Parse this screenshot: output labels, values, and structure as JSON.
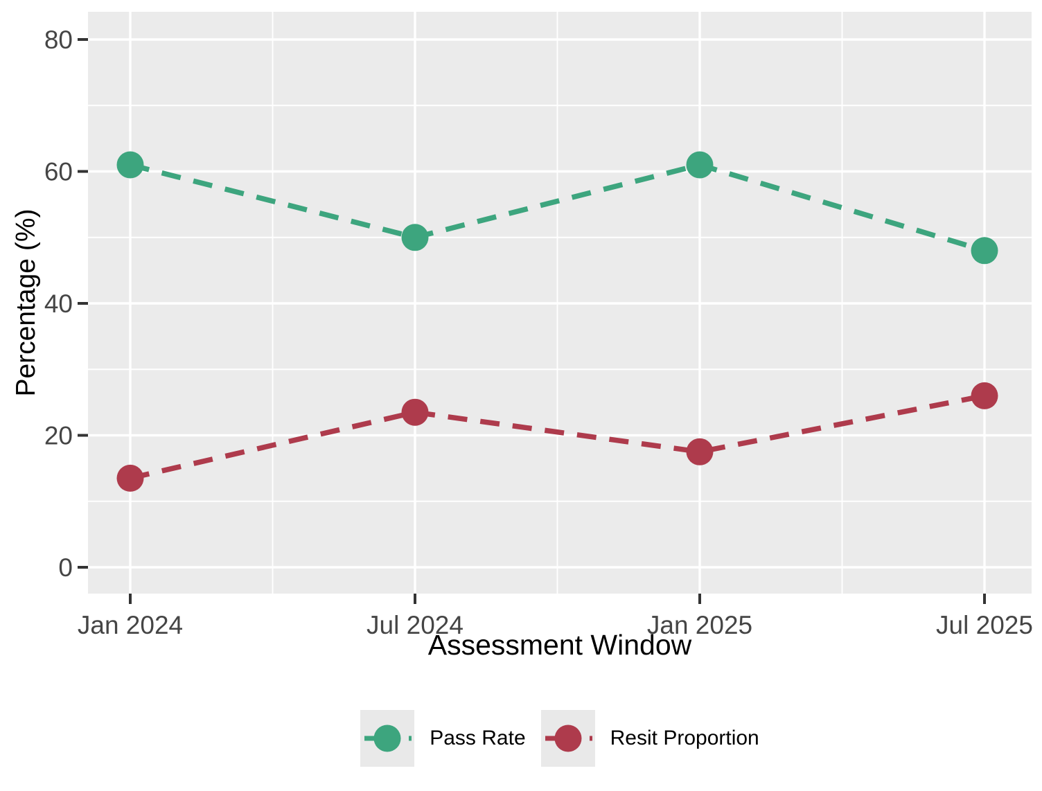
{
  "chart_data": {
    "type": "line",
    "title": "",
    "xlabel": "Assessment Window",
    "ylabel": "Percentage (%)",
    "categories": [
      "Jan 2024",
      "Jul 2024",
      "Jan 2025",
      "Jul 2025"
    ],
    "series": [
      {
        "name": "Pass Rate",
        "color": "#3DA57E",
        "values": [
          61,
          50,
          61,
          48
        ]
      },
      {
        "name": "Resit Proportion",
        "color": "#AE3B4C",
        "values": [
          13.5,
          23.5,
          17.5,
          26
        ]
      }
    ],
    "y_ticks": [
      0,
      20,
      40,
      60,
      80
    ],
    "y_minor_ticks": [
      10,
      30,
      50,
      70
    ],
    "ylim": [
      -4,
      84.2
    ],
    "line_style": "dashed",
    "marker": "circle",
    "grid": true,
    "legend_position": "bottom",
    "colors": {
      "panel_bg": "#EBEBEB",
      "grid": "#FFFFFF",
      "tick_label": "#454545",
      "tick_mark": "#333333",
      "axis_title": "#000000",
      "legend_key_bg": "#E9E9E9"
    }
  }
}
